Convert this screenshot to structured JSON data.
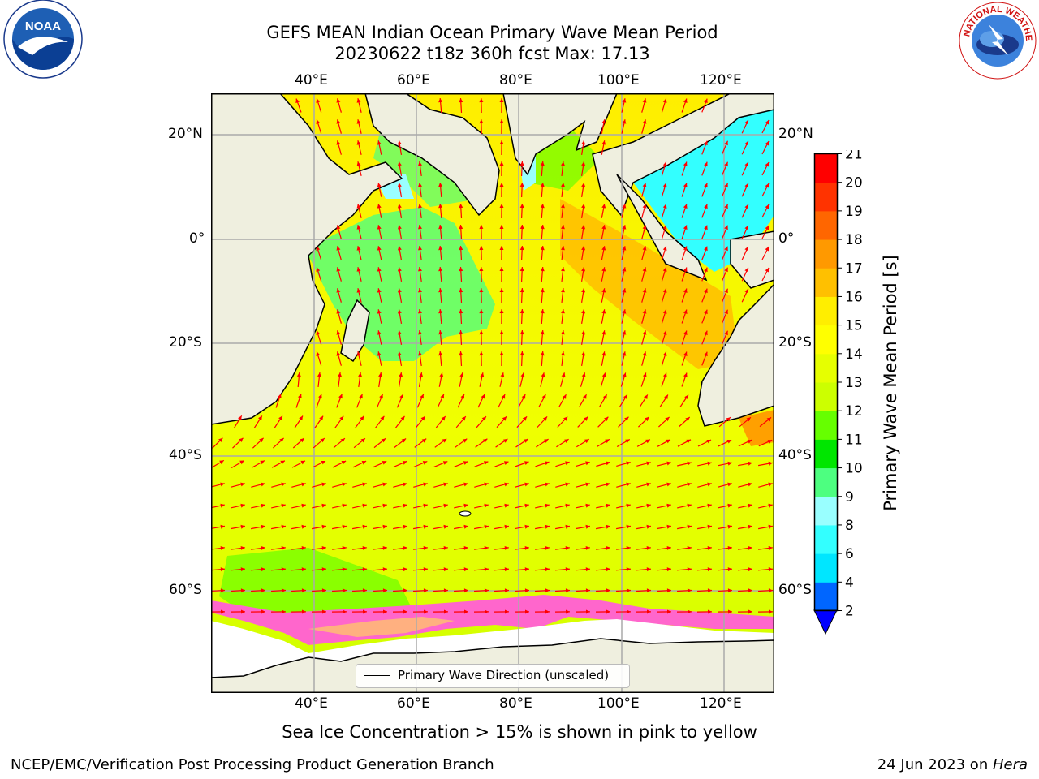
{
  "title": {
    "line1": "GEFS MEAN Indian Ocean Primary Wave Mean Period",
    "line2": "20230622 t18z 360h fcst   Max: 17.13"
  },
  "logos": {
    "left": "NOAA",
    "right": "NATIONAL WEATHER SERVICE"
  },
  "map": {
    "lon_ticks": [
      "40°E",
      "60°E",
      "80°E",
      "100°E",
      "120°E"
    ],
    "lat_ticks": [
      "20°N",
      "0°",
      "20°S",
      "40°S",
      "60°S"
    ],
    "extent": {
      "lon": [
        20,
        130
      ],
      "lat": [
        -74,
        28
      ]
    },
    "land_color": "#efefdf",
    "arrow_color": "#ff0000",
    "legend_label": "Primary Wave Direction (unscaled)"
  },
  "colorbar": {
    "label": "Primary Wave Mean Period [s]",
    "ticks": [
      "2",
      "4",
      "6",
      "8",
      "9",
      "10",
      "11",
      "12",
      "13",
      "14",
      "15",
      "16",
      "17",
      "18",
      "19",
      "20",
      "21"
    ],
    "colors": [
      "#0066ff",
      "#00e6ff",
      "#33ffff",
      "#99ffff",
      "#4dff80",
      "#00e600",
      "#66ff00",
      "#ccff00",
      "#e6ff00",
      "#ffff00",
      "#ffee00",
      "#ffc000",
      "#ff9900",
      "#ff6600",
      "#ff3300",
      "#ff0000"
    ],
    "under_color": "#0000ff"
  },
  "ice_note": "Sea Ice Concentration > 15% is shown in pink to yellow",
  "footer": {
    "left": "NCEP/EMC/Verification Post Processing Product Generation Branch",
    "date": "24 Jun 2023 on ",
    "machine": "Hera"
  }
}
